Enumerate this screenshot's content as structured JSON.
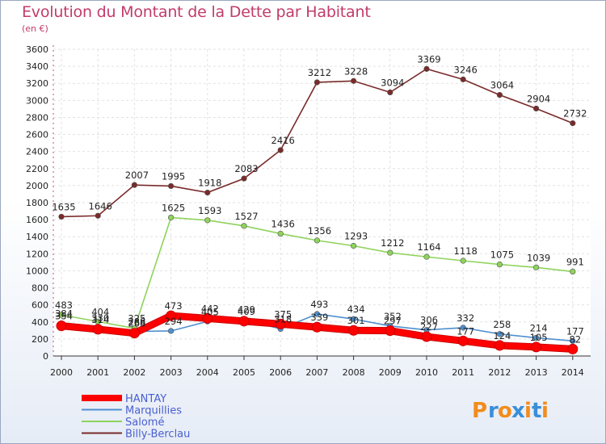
{
  "chart_data": {
    "type": "line",
    "title": "Evolution du Montant de la Dette par Habitant",
    "subtitle": "(en €)",
    "x": [
      "2000",
      "2001",
      "2002",
      "2003",
      "2004",
      "2005",
      "2006",
      "2007",
      "2008",
      "2009",
      "2010",
      "2011",
      "2012",
      "2013",
      "2014"
    ],
    "ylim": [
      0,
      3600
    ],
    "yticks": [
      0,
      200,
      400,
      600,
      800,
      1000,
      1200,
      1400,
      1600,
      1800,
      2000,
      2200,
      2400,
      2600,
      2800,
      3000,
      3200,
      3400,
      3600
    ],
    "grid": true,
    "legend_position": "bottom-left",
    "series": [
      {
        "name": "HANTAY",
        "color": "#ff0000",
        "values": [
          354,
          314,
          268,
          473,
          442,
          409,
          375,
          339,
          301,
          297,
          227,
          177,
          124,
          105,
          82
        ]
      },
      {
        "name": "Marquillies",
        "color": "#4f8fd0",
        "values": [
          384,
          330,
          288,
          294,
          405,
          429,
          318,
          493,
          434,
          352,
          306,
          332,
          258,
          214,
          177
        ]
      },
      {
        "name": "Salomé",
        "color": "#8ed35b",
        "values": [
          483,
          404,
          325,
          1625,
          1593,
          1527,
          1436,
          1356,
          1293,
          1212,
          1164,
          1118,
          1075,
          1039,
          991
        ]
      },
      {
        "name": "Billy-Berclau",
        "color": "#7a2a2a",
        "values": [
          1635,
          1646,
          2007,
          1995,
          1918,
          2083,
          2416,
          3212,
          3228,
          3094,
          3369,
          3246,
          3064,
          2904,
          2732
        ]
      }
    ],
    "data_labels": {
      "HANTAY": [
        "354",
        "314",
        "268",
        "473",
        "442",
        "409",
        "375",
        "339",
        "301",
        "297",
        "227",
        "177",
        "124",
        "105",
        "82"
      ],
      "Marquillies": [
        "384",
        "330",
        "288",
        "294",
        "405",
        "429",
        "318",
        "493",
        "434",
        "352",
        "306",
        "332",
        "258",
        "214",
        "177"
      ],
      "Salomé": [
        "483",
        "404",
        "325",
        "1625",
        "1593",
        "1527",
        "1436",
        "1356",
        "1293",
        "1212",
        "1164",
        "1118",
        "1075",
        "1039",
        "991"
      ],
      "Billy-Berclau": [
        "1635",
        "1646",
        "2007",
        "1995",
        "1918",
        "2083",
        "2416",
        "3212",
        "3228",
        "3094",
        "3369",
        "3246",
        "3064",
        "2904",
        "2732"
      ]
    }
  },
  "brand": {
    "text": "Proxiti",
    "letters": [
      "P",
      "r",
      "o",
      "x",
      "i",
      "t",
      "i"
    ],
    "colors": [
      "#f28c1b",
      "#3a8fd8",
      "#f28c1b",
      "#3a8fd8",
      "#f28c1b",
      "#3a8fd8",
      "#f28c1b"
    ]
  }
}
